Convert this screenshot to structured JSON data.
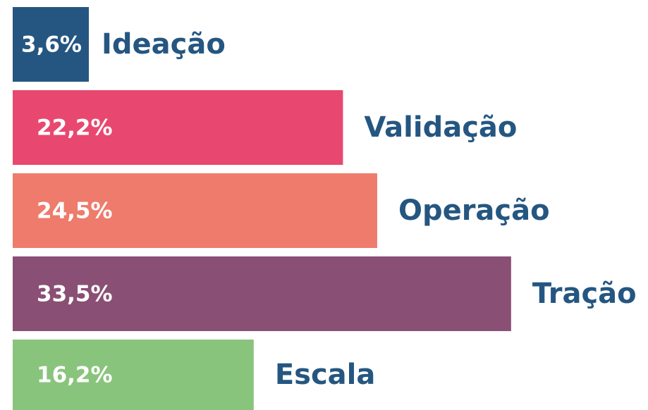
{
  "chart_data": {
    "type": "bar",
    "categories": [
      "Ideação",
      "Validação",
      "Operação",
      "Tração",
      "Escala"
    ],
    "values": [
      3.6,
      22.2,
      24.5,
      33.5,
      16.2
    ],
    "value_labels": [
      "3,6%",
      "22,2%",
      "24,5%",
      "33,5%",
      "16,2%"
    ],
    "colors": [
      "#255681",
      "#e84870",
      "#ee7b6b",
      "#8a4f74",
      "#89c47c"
    ],
    "label_color": "#255681"
  }
}
